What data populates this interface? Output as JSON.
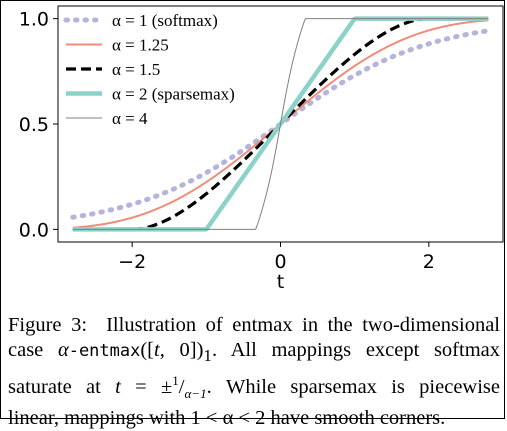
{
  "chart_data": {
    "type": "line",
    "xlabel": "t",
    "ylabel": "",
    "xlim": [
      -3.0,
      3.0
    ],
    "ylim": [
      -0.06,
      1.06
    ],
    "xticks": [
      -2,
      0,
      2
    ],
    "xtick_labels": [
      "−2",
      "0",
      "2"
    ],
    "yticks": [
      0.0,
      0.5,
      1.0
    ],
    "ytick_labels": [
      "0.0",
      "0.5",
      "1.0"
    ],
    "legend_position": "upper-left",
    "series": [
      {
        "name": "α = 1 (softmax)",
        "alpha": 1,
        "color": "#b4b4dc",
        "style": "dotted"
      },
      {
        "name": "α = 1.25",
        "alpha": 1.25,
        "color": "#f08c78",
        "style": "solid"
      },
      {
        "name": "α = 1.5",
        "alpha": 1.5,
        "color": "#000000",
        "style": "dashed"
      },
      {
        "name": "α = 2 (sparsemax)",
        "alpha": 2,
        "color": "#8cd2c8",
        "style": "solid-thick"
      },
      {
        "name": "α = 4",
        "alpha": 4,
        "color": "#808080",
        "style": "solid-thin"
      }
    ],
    "x_range": [
      -2.8,
      2.8
    ]
  },
  "caption": {
    "label": "Figure 3:",
    "line1_text": "Illustration of entmax in the two-dimensional",
    "line2_a": "case ",
    "line2_alpha": "α",
    "line2_mono": "-entmax",
    "line2_b": "([",
    "line2_t": "t",
    "line2_c": ", 0])",
    "line2_sub": "1",
    "line2_d": ".  All mappings except softmax",
    "line3_a": "saturate at ",
    "line3_t": "t",
    "line3_b": " = ±",
    "line3_frac_num": "1",
    "line3_frac_den": "α−1",
    "line3_c": ". While sparsemax is piecewise",
    "line4_text": "linear, mappings with 1 < α < 2 have smooth corners."
  }
}
